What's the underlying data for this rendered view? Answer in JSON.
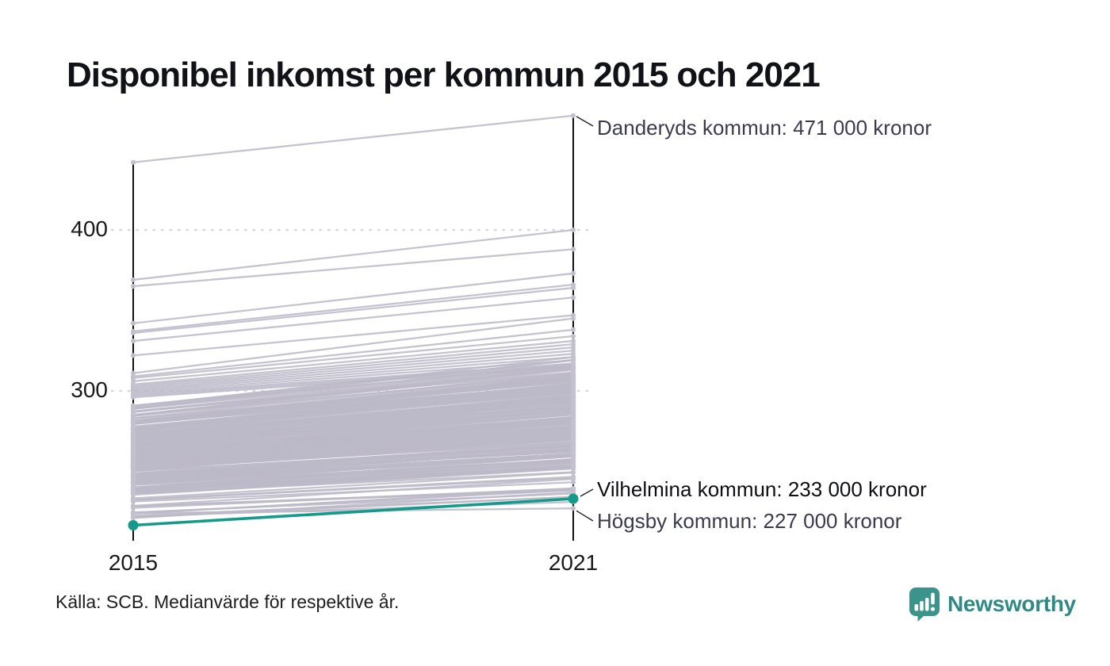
{
  "title": "Disponibel inkomst per kommun 2015 och 2021",
  "source_note": "Källa: SCB. Medianvärde för respektive år.",
  "branding": {
    "wordmark": "Newsworthy"
  },
  "colors": {
    "line_gray": "#bcb9c8",
    "dot_gray": "#c4c1cf",
    "highlight_teal": "#149a8b",
    "axis_black": "#111111",
    "gridline_gray": "#d9d8e0",
    "connector_dark": "#23232d",
    "annotation_slate": "#3b3b4d",
    "brand_teal": "#3a948c"
  },
  "axis": {
    "y_tick_labels": [
      "400",
      "300"
    ],
    "y_tick_values": [
      400,
      300
    ]
  },
  "chart_data": {
    "type": "line",
    "subtype": "slope-chart",
    "x_categories": [
      "2015",
      "2021"
    ],
    "unit": "tusen kronor",
    "ylim": [
      210,
      480
    ],
    "grid": "dotted-horizontal",
    "annotations": [
      {
        "label": "Danderyds kommun: 471 000 kronor",
        "value": 471,
        "highlight": false
      },
      {
        "label": "Vilhelmina kommun: 233 000 kronor",
        "value": 233,
        "highlight": true
      },
      {
        "label": "Högsby kommun: 227 000 kronor",
        "value": 227,
        "highlight": false
      }
    ],
    "highlight_series": {
      "name": "Vilhelmina kommun",
      "values": [
        216.5,
        233
      ]
    },
    "named_series": [
      {
        "name": "Danderyds kommun",
        "values": [
          442,
          471
        ]
      },
      {
        "name": "Högsby kommun",
        "values": [
          224,
          227
        ]
      }
    ],
    "feature_lines": [
      [
        369,
        400
      ],
      [
        365,
        388
      ],
      [
        342,
        373
      ],
      [
        337,
        366
      ],
      [
        336,
        364
      ],
      [
        331,
        358
      ],
      [
        322,
        347
      ],
      [
        311,
        345
      ],
      [
        309,
        338
      ],
      [
        308,
        334
      ],
      [
        306,
        331
      ],
      [
        304,
        329
      ],
      [
        303,
        327
      ],
      [
        302,
        325
      ],
      [
        301,
        323
      ],
      [
        300,
        321
      ],
      [
        299,
        319
      ],
      [
        298,
        317
      ],
      [
        297,
        316
      ],
      [
        296,
        315
      ],
      [
        222,
        231
      ],
      [
        221,
        237
      ]
    ],
    "background_band": {
      "description": "ca 290 kommuner, medianinkomst 2015 ca 221-296 tkr, 2021 ca 231-330 tkr",
      "count": 250,
      "v2015_min": 221,
      "v2015_max": 296,
      "delta_base": 8,
      "delta_slope": 0.24,
      "delta_noise": 7,
      "seed": 7
    }
  }
}
